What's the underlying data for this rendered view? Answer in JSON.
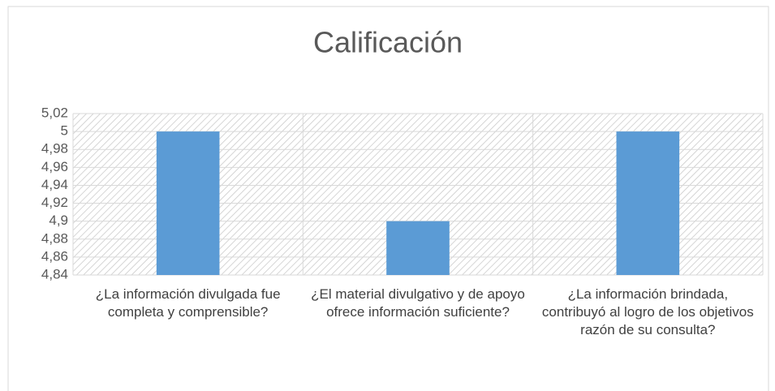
{
  "chart_data": {
    "type": "bar",
    "title": "Calificación",
    "categories": [
      "¿La información divulgada fue completa y comprensible?",
      "¿El material divulgativo y de apoyo ofrece información suficiente?",
      "¿La información brindada, contribuyó al logro de los objetivos razón de su consulta?"
    ],
    "values": [
      5,
      4.9,
      5
    ],
    "color": "#5b9bd5",
    "ylim": [
      4.84,
      5.02
    ],
    "yticks": [
      {
        "value": 4.84,
        "label": "4,84"
      },
      {
        "value": 4.86,
        "label": "4,86"
      },
      {
        "value": 4.88,
        "label": "4,88"
      },
      {
        "value": 4.9,
        "label": "4,9"
      },
      {
        "value": 4.92,
        "label": "4,92"
      },
      {
        "value": 4.94,
        "label": "4,94"
      },
      {
        "value": 4.96,
        "label": "4,96"
      },
      {
        "value": 4.98,
        "label": "4,98"
      },
      5,
      {
        "value": 5.02,
        "label": "5,02"
      }
    ],
    "grid": true
  }
}
